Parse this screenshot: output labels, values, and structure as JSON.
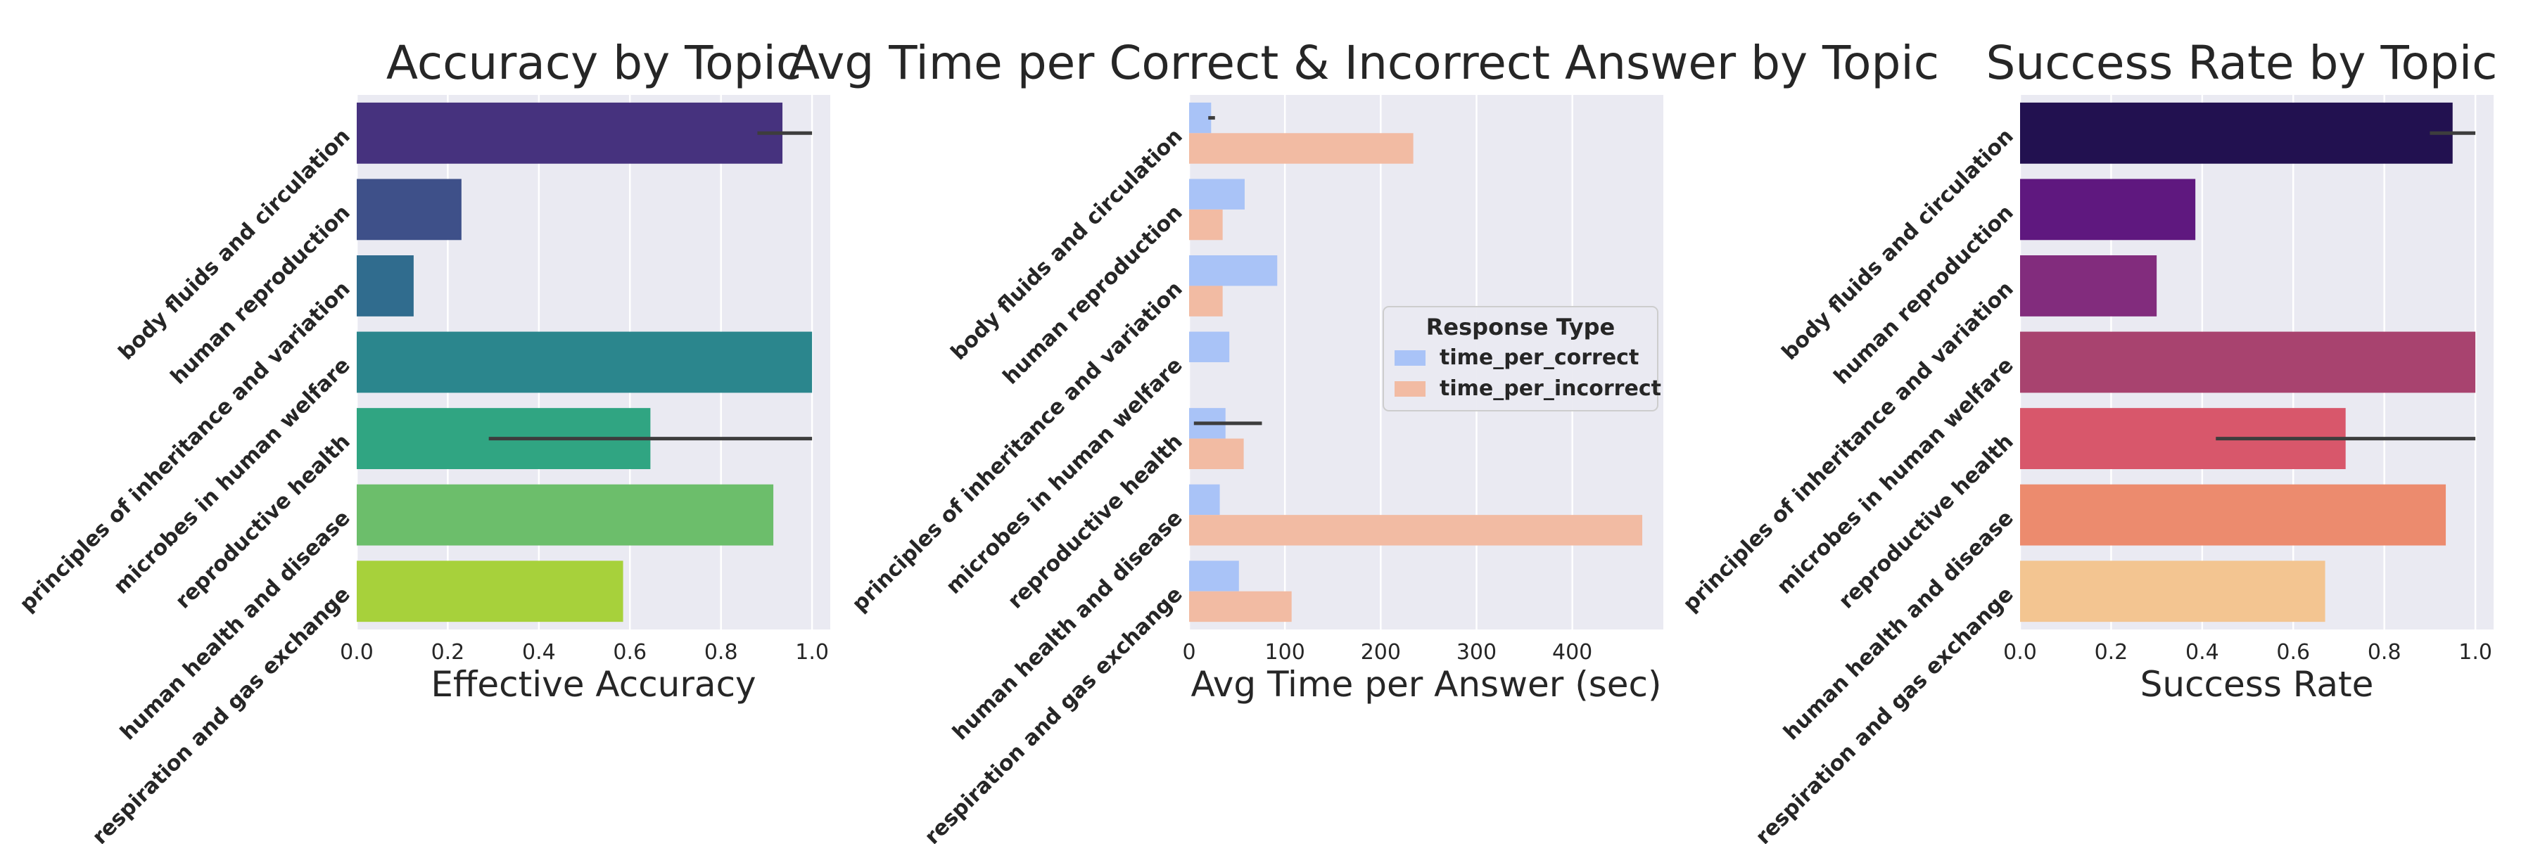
{
  "chart_data": [
    {
      "type": "bar",
      "orientation": "horizontal",
      "title": "Accuracy by Topic",
      "xlabel": "Effective Accuracy",
      "ylabel": "",
      "xlim": [
        0,
        1.04
      ],
      "xticks": [
        "0.0",
        "0.2",
        "0.4",
        "0.6",
        "0.8",
        "1.0"
      ],
      "grid": true,
      "palette": "viridis",
      "categories": [
        "body fluids and circulation",
        "human reproduction",
        "principles of inheritance and variation",
        "microbes in human welfare",
        "reproductive health",
        "human health and disease",
        "respiration and gas exchange"
      ],
      "values": [
        0.935,
        0.23,
        0.125,
        1.0,
        0.645,
        0.915,
        0.585
      ],
      "error_bars": [
        [
          0.88,
          1.0
        ],
        null,
        null,
        null,
        [
          0.29,
          1.0
        ],
        null,
        null
      ],
      "colors": [
        "#46327e",
        "#3e5089",
        "#306c8e",
        "#2b868d",
        "#30a582",
        "#6cbe6b",
        "#a7d13b"
      ]
    },
    {
      "type": "bar",
      "orientation": "horizontal",
      "title": "Avg Time per Correct & Incorrect Answer by Topic",
      "xlabel": "Avg Time per Answer (sec)",
      "ylabel": "",
      "xlim": [
        0,
        495
      ],
      "xticks": [
        "0",
        "100",
        "200",
        "300",
        "400"
      ],
      "grid": true,
      "legend": {
        "title": "Response Type",
        "placement": "center-right",
        "entries": [
          "time_per_correct",
          "time_per_incorrect"
        ]
      },
      "categories": [
        "body fluids and circulation",
        "human reproduction",
        "principles of inheritance and variation",
        "microbes in human welfare",
        "reproductive health",
        "human health and disease",
        "respiration and gas exchange"
      ],
      "series": [
        {
          "name": "time_per_correct",
          "color": "#a9c3f7",
          "values": [
            23,
            58,
            92,
            42,
            38,
            32,
            52
          ],
          "error_bars": [
            [
              20,
              27
            ],
            null,
            null,
            null,
            [
              5,
              76
            ],
            null,
            null
          ]
        },
        {
          "name": "time_per_incorrect",
          "color": "#f2bba3",
          "values": [
            234,
            35,
            35,
            0,
            57,
            473,
            107
          ],
          "error_bars": [
            null,
            null,
            null,
            null,
            null,
            null,
            null
          ]
        }
      ]
    },
    {
      "type": "bar",
      "orientation": "horizontal",
      "title": "Success Rate by Topic",
      "xlabel": "Success Rate",
      "ylabel": "",
      "xlim": [
        0,
        1.04
      ],
      "xticks": [
        "0.0",
        "0.2",
        "0.4",
        "0.6",
        "0.8",
        "1.0"
      ],
      "grid": true,
      "palette": "magma",
      "categories": [
        "body fluids and circulation",
        "human reproduction",
        "principles of inheritance and variation",
        "microbes in human welfare",
        "reproductive health",
        "human health and disease",
        "respiration and gas exchange"
      ],
      "values": [
        0.95,
        0.385,
        0.3,
        1.0,
        0.715,
        0.935,
        0.67
      ],
      "error_bars": [
        [
          0.9,
          1.0
        ],
        null,
        null,
        null,
        [
          0.43,
          1.0
        ],
        null,
        null
      ],
      "colors": [
        "#221150",
        "#5f187f",
        "#822c7d",
        "#a8436f",
        "#d8576b",
        "#ec8b6e",
        "#f3c591"
      ]
    }
  ]
}
